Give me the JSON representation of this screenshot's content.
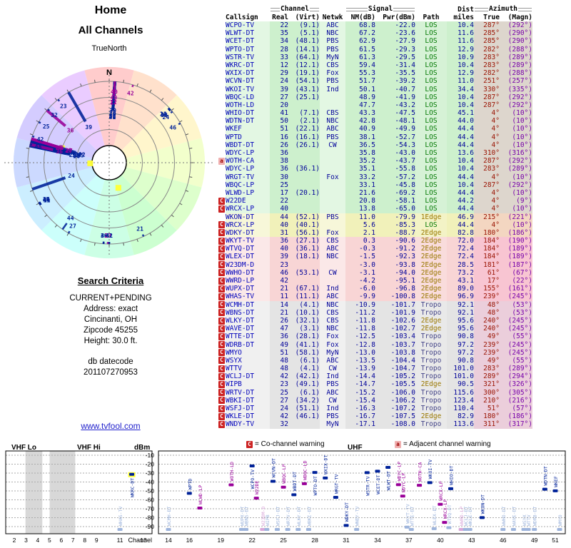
{
  "page": {
    "title1": "Home",
    "title2": "All Channels",
    "compass": "TrueNorth",
    "north": "N",
    "link": "www.tvfool.com"
  },
  "criteria": {
    "heading": "Search Criteria",
    "lines": [
      "CURRENT+PENDING",
      "Address: exact",
      "Cincinanti, OH",
      "Zipcode 45255",
      "Height: 30.0 ft."
    ],
    "db1": "db datecode",
    "db2": "201107270953"
  },
  "legend": {
    "c": "C",
    "c_text": "= Co-channel warning",
    "a": "a",
    "a_text": "= Adjacent channel warning"
  },
  "table": {
    "groups": {
      "channel": "Channel",
      "signal": "Signal",
      "dist": "Dist",
      "azimuth": "Azimuth"
    },
    "cols": [
      "Callsign",
      "Real",
      "(Virt)",
      "Netwk",
      "NM(dB)",
      "Pwr(dBm)",
      "Path",
      "miles",
      "True",
      "(Magn)"
    ],
    "rows": [
      {
        "cs": "WCPO-TV",
        "re": "22",
        "vi": "(9.1)",
        "ne": "ABC",
        "nm": "68.8",
        "pw": "-22.0",
        "pa": "LOS",
        "mi": "10.4",
        "tr": "287°",
        "mg": "(292°)",
        "lvl": "green",
        "mk": ""
      },
      {
        "cs": "WLWT-DT",
        "re": "35",
        "vi": "(5.1)",
        "ne": "NBC",
        "nm": "67.2",
        "pw": "-23.6",
        "pa": "LOS",
        "mi": "11.6",
        "tr": "285°",
        "mg": "(290°)",
        "lvl": "green",
        "mk": ""
      },
      {
        "cs": "WCET-DT",
        "re": "34",
        "vi": "(48.1)",
        "ne": "PBS",
        "nm": "62.9",
        "pw": "-27.9",
        "pa": "LOS",
        "mi": "11.6",
        "tr": "285°",
        "mg": "(290°)",
        "lvl": "green",
        "mk": ""
      },
      {
        "cs": "WPTO-DT",
        "re": "28",
        "vi": "(14.1)",
        "ne": "PBS",
        "nm": "61.5",
        "pw": "-29.3",
        "pa": "LOS",
        "mi": "12.9",
        "tr": "282°",
        "mg": "(288°)",
        "lvl": "green",
        "mk": ""
      },
      {
        "cs": "WSTR-TV",
        "re": "33",
        "vi": "(64.1)",
        "ne": "MyN",
        "nm": "61.3",
        "pw": "-29.5",
        "pa": "LOS",
        "mi": "10.9",
        "tr": "283°",
        "mg": "(289°)",
        "lvl": "green",
        "mk": ""
      },
      {
        "cs": "WKRC-DT",
        "re": "12",
        "vi": "(12.1)",
        "ne": "CBS",
        "nm": "59.4",
        "pw": "-31.4",
        "pa": "LOS",
        "mi": "10.4",
        "tr": "283°",
        "mg": "(289°)",
        "lvl": "green",
        "mk": ""
      },
      {
        "cs": "WXIX-DT",
        "re": "29",
        "vi": "(19.1)",
        "ne": "Fox",
        "nm": "55.3",
        "pw": "-35.5",
        "pa": "LOS",
        "mi": "12.9",
        "tr": "282°",
        "mg": "(288°)",
        "lvl": "green",
        "mk": ""
      },
      {
        "cs": "WCVN-DT",
        "re": "24",
        "vi": "(54.1)",
        "ne": "PBS",
        "nm": "51.7",
        "pw": "-39.2",
        "pa": "LOS",
        "mi": "11.0",
        "tr": "251°",
        "mg": "(257°)",
        "lvl": "green",
        "mk": ""
      },
      {
        "cs": "WKOI-TV",
        "re": "39",
        "vi": "(43.1)",
        "ne": "Ind",
        "nm": "50.1",
        "pw": "-40.7",
        "pa": "LOS",
        "mi": "34.4",
        "tr": "330°",
        "mg": "(335°)",
        "lvl": "green",
        "mk": ""
      },
      {
        "cs": "WBQC-LD",
        "re": "27",
        "vi": "(25.1)",
        "ne": "",
        "nm": "48.9",
        "pw": "-41.9",
        "pa": "LOS",
        "mi": "10.4",
        "tr": "287°",
        "mg": "(292°)",
        "lvl": "green",
        "mk": ""
      },
      {
        "cs": "WOTH-LD",
        "re": "20",
        "vi": "",
        "ne": "",
        "nm": "47.7",
        "pw": "-43.2",
        "pa": "LOS",
        "mi": "10.4",
        "tr": "287°",
        "mg": "(292°)",
        "lvl": "green",
        "mk": ""
      },
      {
        "cs": "WHIO-DT",
        "re": "41",
        "vi": "(7.1)",
        "ne": "CBS",
        "nm": "43.3",
        "pw": "-47.5",
        "pa": "LOS",
        "mi": "45.1",
        "tr": "4°",
        "mg": "(10°)",
        "lvl": "green",
        "mk": ""
      },
      {
        "cs": "WDTN-DT",
        "re": "50",
        "vi": "(2.1)",
        "ne": "NBC",
        "nm": "42.8",
        "pw": "-48.1",
        "pa": "LOS",
        "mi": "44.0",
        "tr": "4°",
        "mg": "(10°)",
        "lvl": "green",
        "mk": ""
      },
      {
        "cs": "WKEF",
        "re": "51",
        "vi": "(22.1)",
        "ne": "ABC",
        "nm": "40.9",
        "pw": "-49.9",
        "pa": "LOS",
        "mi": "44.4",
        "tr": "4°",
        "mg": "(10°)",
        "lvl": "green",
        "mk": ""
      },
      {
        "cs": "WPTD",
        "re": "16",
        "vi": "(16.1)",
        "ne": "PBS",
        "nm": "38.1",
        "pw": "-52.7",
        "pa": "LOS",
        "mi": "44.4",
        "tr": "4°",
        "mg": "(10°)",
        "lvl": "green",
        "mk": ""
      },
      {
        "cs": "WBDT-DT",
        "re": "26",
        "vi": "(26.1)",
        "ne": "CW",
        "nm": "36.5",
        "pw": "-54.3",
        "pa": "LOS",
        "mi": "44.4",
        "tr": "4°",
        "mg": "(10°)",
        "lvl": "green",
        "mk": ""
      },
      {
        "cs": "WDYC-LP",
        "re": "36",
        "vi": "",
        "ne": "",
        "nm": "35.8",
        "pw": "-43.0",
        "pa": "LOS",
        "mi": "13.6",
        "tr": "310°",
        "mg": "(316°)",
        "lvl": "green",
        "mk": ""
      },
      {
        "cs": "WOTH-CA",
        "re": "38",
        "vi": "",
        "ne": "",
        "nm": "35.2",
        "pw": "-43.7",
        "pa": "LOS",
        "mi": "10.4",
        "tr": "287°",
        "mg": "(292°)",
        "lvl": "green",
        "mk": "a"
      },
      {
        "cs": "WDYC-LP",
        "re": "36",
        "vi": "(36.1)",
        "ne": "",
        "nm": "35.1",
        "pw": "-55.8",
        "pa": "LOS",
        "mi": "10.4",
        "tr": "283°",
        "mg": "(289°)",
        "lvl": "green",
        "mk": ""
      },
      {
        "cs": "WRGT-TV",
        "re": "30",
        "vi": "",
        "ne": "Fox",
        "nm": "33.2",
        "pw": "-57.2",
        "pa": "LOS",
        "mi": "44.4",
        "tr": "4°",
        "mg": "(10°)",
        "lvl": "green",
        "mk": ""
      },
      {
        "cs": "WBQC-LP",
        "re": "25",
        "vi": "",
        "ne": "",
        "nm": "33.1",
        "pw": "-45.8",
        "pa": "LOS",
        "mi": "10.4",
        "tr": "287°",
        "mg": "(292°)",
        "lvl": "green",
        "mk": ""
      },
      {
        "cs": "WLWD-LP",
        "re": "17",
        "vi": "(20.1)",
        "ne": "",
        "nm": "21.6",
        "pw": "-69.2",
        "pa": "LOS",
        "mi": "44.4",
        "tr": "4°",
        "mg": "(10°)",
        "lvl": "green",
        "mk": ""
      },
      {
        "cs": "W22DE",
        "re": "22",
        "vi": "",
        "ne": "",
        "nm": "20.8",
        "pw": "-58.1",
        "pa": "LOS",
        "mi": "44.2",
        "tr": "4°",
        "mg": "(9°)",
        "lvl": "green",
        "mk": "C"
      },
      {
        "cs": "WRCX-LP",
        "re": "40",
        "vi": "",
        "ne": "",
        "nm": "13.8",
        "pw": "-65.0",
        "pa": "LOS",
        "mi": "44.4",
        "tr": "4°",
        "mg": "(10°)",
        "lvl": "green",
        "mk": "C"
      },
      {
        "cs": "WKON-DT",
        "re": "44",
        "vi": "(52.1)",
        "ne": "PBS",
        "nm": "11.0",
        "pw": "-79.9",
        "pa": "1Edge",
        "mi": "46.9",
        "tr": "215°",
        "mg": "(221°)",
        "lvl": "yellow",
        "mk": ""
      },
      {
        "cs": "WRCX-LP",
        "re": "40",
        "vi": "(40.1)",
        "ne": "",
        "nm": "5.6",
        "pw": "-85.3",
        "pa": "LOS",
        "mi": "44.4",
        "tr": "4°",
        "mg": "(10°)",
        "lvl": "yellow",
        "mk": "C"
      },
      {
        "cs": "WDKY-DT",
        "re": "31",
        "vi": "(56.1)",
        "ne": "Fox",
        "nm": "2.1",
        "pw": "-88.7",
        "pa": "2Edge",
        "mi": "82.8",
        "tr": "180°",
        "mg": "(186°)",
        "lvl": "yellow",
        "mk": "C"
      },
      {
        "cs": "WKYT-TV",
        "re": "36",
        "vi": "(27.1)",
        "ne": "CBS",
        "nm": "0.3",
        "pw": "-90.6",
        "pa": "2Edge",
        "mi": "72.0",
        "tr": "184°",
        "mg": "(190°)",
        "lvl": "pink",
        "mk": "C"
      },
      {
        "cs": "WTVQ-DT",
        "re": "40",
        "vi": "(36.1)",
        "ne": "ABC",
        "nm": "-0.3",
        "pw": "-91.2",
        "pa": "2Edge",
        "mi": "72.4",
        "tr": "184°",
        "mg": "(189°)",
        "lvl": "pink",
        "mk": "C"
      },
      {
        "cs": "WLEX-DT",
        "re": "39",
        "vi": "(18.1)",
        "ne": "NBC",
        "nm": "-1.5",
        "pw": "-92.3",
        "pa": "2Edge",
        "mi": "72.4",
        "tr": "184°",
        "mg": "(189°)",
        "lvl": "pink",
        "mk": "C"
      },
      {
        "cs": "W23DM-D",
        "re": "23",
        "vi": "",
        "ne": "",
        "nm": "-3.0",
        "pw": "-93.8",
        "pa": "2Edge",
        "mi": "28.5",
        "tr": "181°",
        "mg": "(187°)",
        "lvl": "pink",
        "mk": "C"
      },
      {
        "cs": "WWHO-DT",
        "re": "46",
        "vi": "(53.1)",
        "ne": "CW",
        "nm": "-3.1",
        "pw": "-94.0",
        "pa": "2Edge",
        "mi": "73.2",
        "tr": "61°",
        "mg": "(67°)",
        "lvl": "pink",
        "mk": "C"
      },
      {
        "cs": "WWRD-LP",
        "re": "42",
        "vi": "",
        "ne": "",
        "nm": "-4.2",
        "pw": "-95.1",
        "pa": "2Edge",
        "mi": "43.1",
        "tr": "17°",
        "mg": "(22°)",
        "lvl": "pink",
        "mk": "C"
      },
      {
        "cs": "WUPX-DT",
        "re": "21",
        "vi": "(67.1)",
        "ne": "Ind",
        "nm": "-6.0",
        "pw": "-96.8",
        "pa": "2Edge",
        "mi": "89.0",
        "tr": "155°",
        "mg": "(161°)",
        "lvl": "pink",
        "mk": "C"
      },
      {
        "cs": "WHAS-TV",
        "re": "11",
        "vi": "(11.1)",
        "ne": "ABC",
        "nm": "-9.9",
        "pw": "-100.8",
        "pa": "2Edge",
        "mi": "96.9",
        "tr": "239°",
        "mg": "(245°)",
        "lvl": "pink",
        "mk": "C"
      },
      {
        "cs": "WCMH-DT",
        "re": "14",
        "vi": "(4.1)",
        "ne": "NBC",
        "nm": "-10.9",
        "pw": "-101.7",
        "pa": "Tropo",
        "mi": "92.1",
        "tr": "48°",
        "mg": "(53°)",
        "lvl": "gray",
        "mk": "C"
      },
      {
        "cs": "WBNS-DT",
        "re": "21",
        "vi": "(10.1)",
        "ne": "CBS",
        "nm": "-11.2",
        "pw": "-101.9",
        "pa": "Tropo",
        "mi": "92.1",
        "tr": "48°",
        "mg": "(53°)",
        "lvl": "gray",
        "mk": "C"
      },
      {
        "cs": "WLKY-DT",
        "re": "26",
        "vi": "(32.1)",
        "ne": "CBS",
        "nm": "-11.8",
        "pw": "-102.6",
        "pa": "2Edge",
        "mi": "95.6",
        "tr": "240°",
        "mg": "(245°)",
        "lvl": "gray",
        "mk": "C"
      },
      {
        "cs": "WAVE-DT",
        "re": "47",
        "vi": "(3.1)",
        "ne": "NBC",
        "nm": "-11.8",
        "pw": "-102.7",
        "pa": "2Edge",
        "mi": "95.6",
        "tr": "240°",
        "mg": "(245°)",
        "lvl": "gray",
        "mk": "C"
      },
      {
        "cs": "WTTE-DT",
        "re": "36",
        "vi": "(28.1)",
        "ne": "Fox",
        "nm": "-12.5",
        "pw": "-103.4",
        "pa": "Tropo",
        "mi": "90.8",
        "tr": "49°",
        "mg": "(55°)",
        "lvl": "gray",
        "mk": "C"
      },
      {
        "cs": "WDRB-DT",
        "re": "49",
        "vi": "(41.1)",
        "ne": "Fox",
        "nm": "-12.8",
        "pw": "-103.7",
        "pa": "Tropo",
        "mi": "97.2",
        "tr": "239°",
        "mg": "(245°)",
        "lvl": "gray",
        "mk": "C"
      },
      {
        "cs": "WMYO",
        "re": "51",
        "vi": "(58.1)",
        "ne": "MyN",
        "nm": "-13.0",
        "pw": "-103.8",
        "pa": "Tropo",
        "mi": "97.2",
        "tr": "239°",
        "mg": "(245°)",
        "lvl": "gray",
        "mk": "C"
      },
      {
        "cs": "WSYX",
        "re": "48",
        "vi": "(6.1)",
        "ne": "ABC",
        "nm": "-13.5",
        "pw": "-104.4",
        "pa": "Tropo",
        "mi": "90.8",
        "tr": "49°",
        "mg": "(55°)",
        "lvl": "gray",
        "mk": "C"
      },
      {
        "cs": "WTTV",
        "re": "48",
        "vi": "(4.1)",
        "ne": "CW",
        "nm": "-13.9",
        "pw": "-104.7",
        "pa": "Tropo",
        "mi": "101.0",
        "tr": "283°",
        "mg": "(289°)",
        "lvl": "gray",
        "mk": "C"
      },
      {
        "cs": "WCLJ-DT",
        "re": "42",
        "vi": "(42.1)",
        "ne": "Ind",
        "nm": "-14.4",
        "pw": "-105.2",
        "pa": "Tropo",
        "mi": "101.0",
        "tr": "289°",
        "mg": "(294°)",
        "lvl": "gray",
        "mk": "C"
      },
      {
        "cs": "WIPB",
        "re": "23",
        "vi": "(49.1)",
        "ne": "PBS",
        "nm": "-14.7",
        "pw": "-105.5",
        "pa": "2Edge",
        "mi": "90.5",
        "tr": "321°",
        "mg": "(326°)",
        "lvl": "gray",
        "mk": "C"
      },
      {
        "cs": "WRTV-DT",
        "re": "25",
        "vi": "(6.1)",
        "ne": "ABC",
        "nm": "-15.2",
        "pw": "-106.0",
        "pa": "Tropo",
        "mi": "115.6",
        "tr": "300°",
        "mg": "(305°)",
        "lvl": "gray",
        "mk": "C"
      },
      {
        "cs": "WBKI-DT",
        "re": "27",
        "vi": "(34.2)",
        "ne": "CW",
        "nm": "-15.4",
        "pw": "-106.2",
        "pa": "Tropo",
        "mi": "123.4",
        "tr": "210°",
        "mg": "(216°)",
        "lvl": "gray",
        "mk": "C"
      },
      {
        "cs": "WSFJ-DT",
        "re": "24",
        "vi": "(51.1)",
        "ne": "Ind",
        "nm": "-16.3",
        "pw": "-107.2",
        "pa": "Tropo",
        "mi": "110.4",
        "tr": "51°",
        "mg": "(57°)",
        "lvl": "gray",
        "mk": "C"
      },
      {
        "cs": "WKLE-DT",
        "re": "42",
        "vi": "(46.1)",
        "ne": "PBS",
        "nm": "-16.7",
        "pw": "-107.5",
        "pa": "2Edge",
        "mi": "82.9",
        "tr": "180°",
        "mg": "(186°)",
        "lvl": "gray",
        "mk": "C"
      },
      {
        "cs": "WNDY-TV",
        "re": "32",
        "vi": "",
        "ne": "MyN",
        "nm": "-17.1",
        "pw": "-108.0",
        "pa": "Tropo",
        "mi": "113.6",
        "tr": "311°",
        "mg": "(317°)",
        "lvl": "gray",
        "mk": "C"
      }
    ]
  },
  "radar": {
    "highlights": [
      {
        "az": 287,
        "f": 0.5
      },
      {
        "az": 160,
        "f": 0.85
      },
      {
        "az": 268,
        "f": 0.97
      }
    ]
  },
  "spectrum": {
    "dbm_label": "dBm",
    "channel_label": "Channel",
    "bands": {
      "vhf_lo": "VHF Lo",
      "vhf_hi": "VHF Hi",
      "uhf": "UHF"
    },
    "y_ticks": [
      -10,
      -20,
      -30,
      -40,
      -50,
      -60,
      -70,
      -80,
      -90
    ],
    "vhf_ticks": [
      2,
      3,
      4,
      5,
      6,
      7,
      8,
      9,
      11,
      13
    ],
    "uhf_ticks": [
      14,
      16,
      19,
      22,
      25,
      28,
      31,
      34,
      37,
      40,
      43,
      46,
      49,
      51
    ]
  },
  "colors": {
    "green": "#cdf0cd",
    "yellow": "#f1f1ba",
    "pink": "#f8d5d5",
    "gray": "#e4e4e4",
    "navy": "#000099",
    "callsign": "#0000bb",
    "true": "#991100",
    "magn": "#7700aa",
    "path": {
      "LOS": "#007700",
      "1Edge": "#997700",
      "2Edge": "#997700",
      "Tropo": "#444488"
    },
    "station_blue": "#002299",
    "station_purple": "#990099",
    "clamp_blue": "#9db4dc",
    "clamp_purple": "#d9a6d9",
    "highlight": "#ffff33"
  }
}
